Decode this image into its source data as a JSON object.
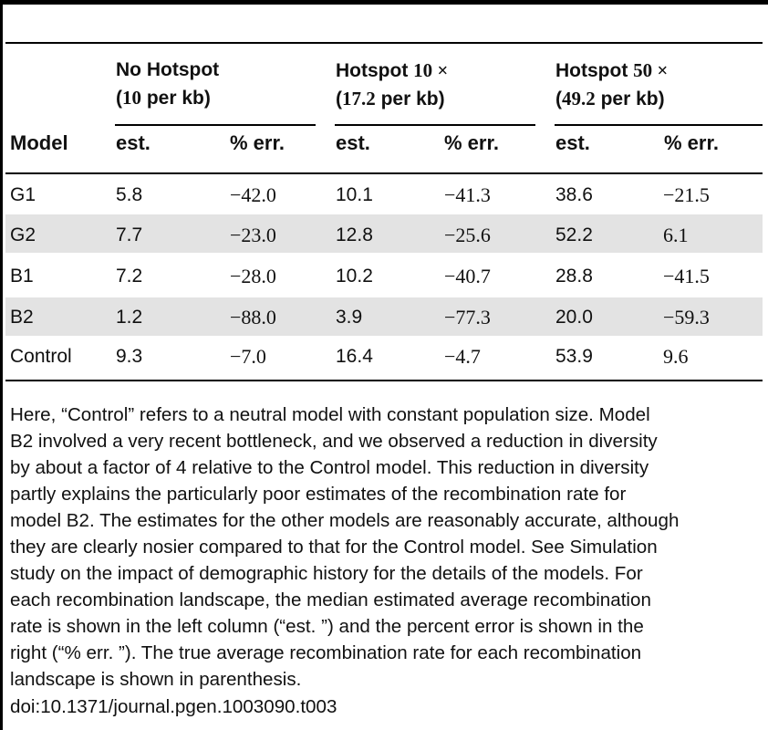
{
  "table": {
    "groups": [
      {
        "name_pre": "No Hotspot",
        "name_num": "",
        "name_post": "",
        "rate_pre": "(",
        "rate_num": "10",
        "rate_post": " per kb)"
      },
      {
        "name_pre": "Hotspot ",
        "name_num": "10",
        "name_post": " ×",
        "rate_pre": "(",
        "rate_num": "17.2",
        "rate_post": " per kb)"
      },
      {
        "name_pre": "Hotspot ",
        "name_num": "50",
        "name_post": " ×",
        "rate_pre": "(",
        "rate_num": "49.2",
        "rate_post": " per kb)"
      }
    ],
    "columns": [
      "Model",
      "est.",
      "% err.",
      "est.",
      "% err.",
      "est.",
      "% err."
    ],
    "rows": [
      {
        "model": "G1",
        "values": [
          "5.8",
          "−42.0",
          "10.1",
          "−41.3",
          "38.6",
          "−21.5"
        ],
        "shaded": false
      },
      {
        "model": "G2",
        "values": [
          "7.7",
          "−23.0",
          "12.8",
          "−25.6",
          "52.2",
          "6.1"
        ],
        "shaded": true
      },
      {
        "model": "B1",
        "values": [
          "7.2",
          "−28.0",
          "10.2",
          "−40.7",
          "28.8",
          "−41.5"
        ],
        "shaded": false
      },
      {
        "model": "B2",
        "values": [
          "1.2",
          "−88.0",
          "3.9",
          "−77.3",
          "20.0",
          "−59.3"
        ],
        "shaded": true
      },
      {
        "model": "Control",
        "values": [
          "9.3",
          "−7.0",
          "16.4",
          "−4.7",
          "53.9",
          "9.6"
        ],
        "shaded": false
      }
    ]
  },
  "footnote": {
    "lines": [
      "Here, “Control” refers to a neutral model with constant population size. Model",
      "B2 involved a very recent bottleneck, and we observed a reduction in diversity",
      "by about a factor of 4 relative to the Control model. This reduction in diversity",
      "partly explains the particularly poor estimates of the recombination rate for",
      "model B2. The estimates for the other models are reasonably accurate, although",
      "they are clearly nosier compared to that for the Control model. See Simulation",
      "study on the impact of demographic history for the details of the models. For",
      "each recombination landscape, the median estimated average recombination",
      "rate is shown in the left column (“est. ”) and the percent error is shown in the",
      "right (“% err. ”). The true average recombination rate for each recombination",
      "landscape is shown in parenthesis."
    ],
    "doi": "doi:10.1371/journal.pgen.1003090.t003"
  },
  "colors": {
    "rule": "#000000",
    "shaded_row": "#e3e3e3",
    "text": "#111111"
  }
}
